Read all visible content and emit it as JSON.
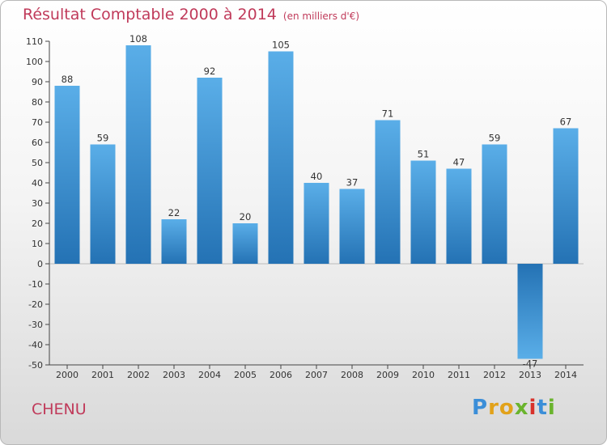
{
  "title": "Résultat Comptable 2000 à 2014",
  "subtitle": "(en milliers d'€)",
  "place": "CHENU",
  "logo": {
    "text": "Proxiti",
    "letters": [
      "P",
      "r",
      "o",
      "x",
      "i",
      "t",
      "i"
    ],
    "colors": [
      "#3b8ed8",
      "#e2a21a",
      "#e2a21a",
      "#6ab42d",
      "#d8322b",
      "#3b8ed8",
      "#6ab42d"
    ]
  },
  "colors": {
    "bar_light": "#5aaee8",
    "bar_dark": "#2472b4",
    "title": "#c03a5a"
  },
  "chart_data": {
    "type": "bar",
    "title": "Résultat Comptable 2000 à 2014",
    "subtitle": "(en milliers d'€)",
    "xlabel": "",
    "ylabel": "",
    "categories": [
      "2000",
      "2001",
      "2002",
      "2003",
      "2004",
      "2005",
      "2006",
      "2007",
      "2008",
      "2009",
      "2010",
      "2011",
      "2012",
      "2013",
      "2014"
    ],
    "values": [
      88,
      59,
      108,
      22,
      92,
      20,
      105,
      40,
      37,
      71,
      51,
      47,
      59,
      -47,
      67
    ],
    "ylim": [
      -50,
      110
    ],
    "yticks": [
      110,
      100,
      90,
      80,
      70,
      60,
      50,
      40,
      30,
      20,
      10,
      0,
      -10,
      -20,
      -30,
      -40,
      -50
    ],
    "grid": false
  }
}
